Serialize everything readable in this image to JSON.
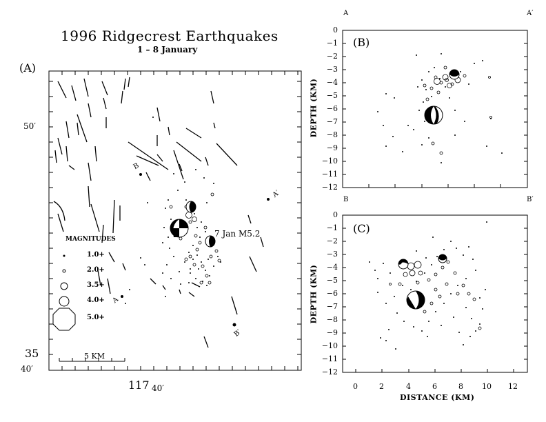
{
  "map": {
    "title": "1996 Ridgecrest Earthquakes",
    "subtitle": "1 – 8 January",
    "panel_label": "(A)",
    "lat_label_50": "50′",
    "lat_label_35": "35",
    "lat_label_40": "40′",
    "lon_label": "117",
    "lon_label_minutes": "40′",
    "scale_label": "5 KM",
    "annotation_event": "7 Jan M5.2",
    "section_B": "B",
    "section_Bprime": "B′",
    "section_A": "A",
    "section_Aprime": "A′",
    "legend": {
      "title": "MAGNITUDES",
      "items": [
        {
          "label": "1.0+",
          "magnitude": 1.0
        },
        {
          "label": "2.0+",
          "magnitude": 2.0
        },
        {
          "label": "3.5+",
          "magnitude": 3.5
        },
        {
          "label": "4.0+",
          "magnitude": 4.0
        },
        {
          "label": "5.0+",
          "magnitude": 5.0
        }
      ]
    }
  },
  "panel_b": {
    "label": "(B)",
    "corner_left": "A",
    "corner_right": "A′",
    "y_label": "DEPTH (KM)",
    "y_ticks": [
      "0",
      "−1",
      "−2",
      "−3",
      "−4",
      "−5",
      "−6",
      "−7",
      "−8",
      "−9",
      "−10",
      "−11",
      "−12"
    ]
  },
  "panel_c": {
    "label": "(C)",
    "corner_left": "B",
    "corner_right": "B′",
    "y_label": "DEPTH (KM)",
    "x_label": "DISTANCE (KM)",
    "y_ticks": [
      "0",
      "−1",
      "−2",
      "−3",
      "−4",
      "−5",
      "−6",
      "−7",
      "−8",
      "−9",
      "−10",
      "−11",
      "−12"
    ],
    "x_ticks": [
      "0",
      "2",
      "4",
      "6",
      "8",
      "10",
      "12"
    ]
  },
  "colors": {
    "ink": "#000000",
    "paper": "#ffffff"
  }
}
